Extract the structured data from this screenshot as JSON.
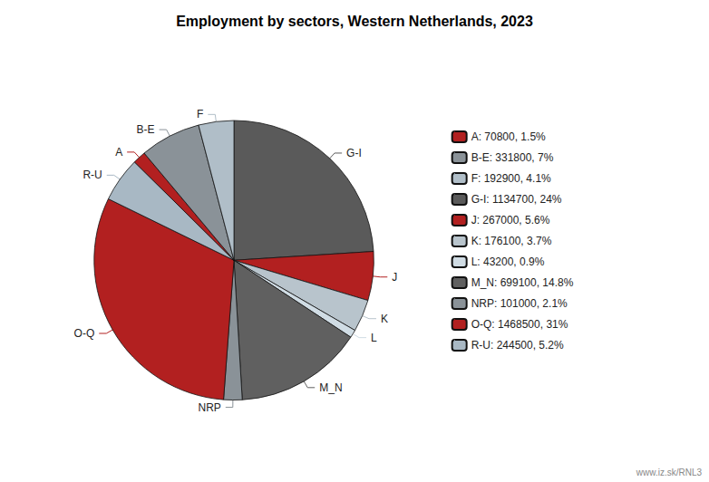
{
  "chart_data": {
    "type": "pie",
    "title": "Employment by sectors, Western Netherlands, 2023",
    "categories": [
      "G-I",
      "J",
      "K",
      "L",
      "M_N",
      "NRP",
      "O-Q",
      "R-U",
      "A",
      "B-E",
      "F"
    ],
    "values": [
      1134700,
      267000,
      176100,
      43200,
      699100,
      101000,
      1468500,
      244500,
      70800,
      331800,
      192900
    ],
    "colors": [
      "#5a5a5a",
      "#b22020",
      "#b8c4cc",
      "#d0dce4",
      "#606060",
      "#8a9298",
      "#b22020",
      "#a8b8c4",
      "#b22020",
      "#8a9298",
      "#b0bec8"
    ],
    "legend": "right",
    "legend_items": [
      {
        "name": "A",
        "label": "A: 70800, 1.5%",
        "color": "#b22020"
      },
      {
        "name": "B-E",
        "label": "B-E: 331800, 7%",
        "color": "#8a9298"
      },
      {
        "name": "F",
        "label": "F: 192900, 4.1%",
        "color": "#b0bec8"
      },
      {
        "name": "G-I",
        "label": "G-I: 1134700, 24%",
        "color": "#5a5a5a"
      },
      {
        "name": "J",
        "label": "J: 267000, 5.6%",
        "color": "#b22020"
      },
      {
        "name": "K",
        "label": "K: 176100, 3.7%",
        "color": "#b8c4cc"
      },
      {
        "name": "L",
        "label": "L: 43200, 0.9%",
        "color": "#d0dce4"
      },
      {
        "name": "M_N",
        "label": "M_N: 699100, 14.8%",
        "color": "#606060"
      },
      {
        "name": "NRP",
        "label": "NRP: 101000, 2.1%",
        "color": "#8a9298"
      },
      {
        "name": "O-Q",
        "label": "O-Q: 1468500, 31%",
        "color": "#b22020"
      },
      {
        "name": "R-U",
        "label": "R-U: 244500, 5.2%",
        "color": "#a8b8c4"
      }
    ],
    "annotations": [
      "www.iz.sk/RNL3"
    ]
  }
}
